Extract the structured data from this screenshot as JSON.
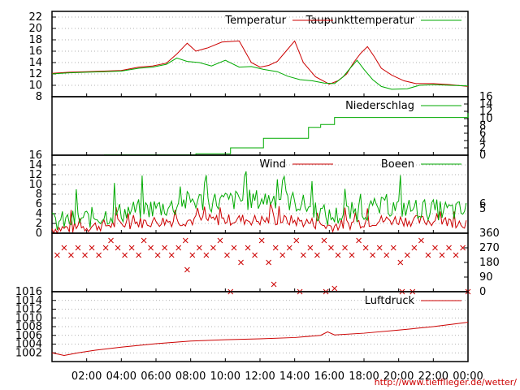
{
  "credit_url": "http://www.tiefflieger.de/wetter/",
  "time_axis": {
    "range_hours": [
      0,
      24
    ],
    "tick_hours": [
      2,
      4,
      6,
      8,
      10,
      12,
      14,
      16,
      18,
      20,
      22,
      24
    ],
    "tick_labels": [
      "02:00",
      "04:00",
      "06:00",
      "08:00",
      "10:00",
      "12:00",
      "14:00",
      "16:00",
      "18:00",
      "20:00",
      "22:00",
      "00:00"
    ]
  },
  "colors": {
    "red": "#cc0000",
    "green": "#00aa00",
    "grid": "#999999"
  },
  "chart_data": [
    {
      "type": "line",
      "ylim": [
        8,
        23
      ],
      "yticks": [
        8,
        10,
        12,
        14,
        16,
        18,
        20,
        22
      ],
      "ytick_labels": [
        "8",
        "10",
        "12",
        "14",
        "16",
        "18",
        "20",
        "22"
      ],
      "grid": true,
      "legend_position": "top-right",
      "series": [
        {
          "name": "Temperatur",
          "color": "red",
          "points": [
            [
              0,
              12.1
            ],
            [
              1,
              12.3
            ],
            [
              2,
              12.4
            ],
            [
              3,
              12.5
            ],
            [
              4,
              12.6
            ],
            [
              5,
              13.2
            ],
            [
              5.8,
              13.4
            ],
            [
              6.6,
              13.9
            ],
            [
              7.2,
              15.5
            ],
            [
              7.8,
              17.4
            ],
            [
              8.3,
              16.0
            ],
            [
              9,
              16.6
            ],
            [
              9.8,
              17.6
            ],
            [
              10.8,
              17.8
            ],
            [
              11.5,
              14.0
            ],
            [
              12,
              13.2
            ],
            [
              12.5,
              13.5
            ],
            [
              13,
              14.2
            ],
            [
              13.5,
              16.0
            ],
            [
              14,
              17.8
            ],
            [
              14.5,
              14.0
            ],
            [
              15.2,
              11.5
            ],
            [
              16,
              10.2
            ],
            [
              16.5,
              10.8
            ],
            [
              17,
              12.0
            ],
            [
              17.4,
              14.0
            ],
            [
              17.8,
              15.6
            ],
            [
              18.2,
              16.8
            ],
            [
              18.6,
              15.0
            ],
            [
              19,
              13.0
            ],
            [
              19.6,
              11.8
            ],
            [
              20.3,
              10.8
            ],
            [
              21,
              10.3
            ],
            [
              22,
              10.3
            ],
            [
              23,
              10.1
            ],
            [
              24,
              9.8
            ]
          ]
        },
        {
          "name": "Taupunkttemperatur",
          "color": "green",
          "points": [
            [
              0,
              12.0
            ],
            [
              1,
              12.2
            ],
            [
              2,
              12.3
            ],
            [
              3,
              12.4
            ],
            [
              4,
              12.5
            ],
            [
              5,
              13.0
            ],
            [
              5.8,
              13.2
            ],
            [
              6.6,
              13.7
            ],
            [
              7.2,
              14.8
            ],
            [
              7.8,
              14.2
            ],
            [
              8.5,
              14.0
            ],
            [
              9.2,
              13.4
            ],
            [
              10,
              14.4
            ],
            [
              10.8,
              13.2
            ],
            [
              11.5,
              13.3
            ],
            [
              12.2,
              12.8
            ],
            [
              13,
              12.4
            ],
            [
              13.6,
              11.6
            ],
            [
              14.3,
              11.0
            ],
            [
              15,
              10.8
            ],
            [
              15.7,
              10.4
            ],
            [
              16.3,
              10.3
            ],
            [
              16.8,
              11.5
            ],
            [
              17.2,
              13.0
            ],
            [
              17.6,
              14.4
            ],
            [
              18,
              12.8
            ],
            [
              18.5,
              11.0
            ],
            [
              19,
              9.8
            ],
            [
              19.6,
              9.3
            ],
            [
              20.5,
              9.4
            ],
            [
              21.2,
              10.0
            ],
            [
              22,
              10.1
            ],
            [
              23,
              10.0
            ],
            [
              24,
              9.9
            ]
          ]
        }
      ]
    },
    {
      "type": "line",
      "ylim": [
        0,
        16
      ],
      "yticks": [
        0,
        2,
        4,
        6,
        8,
        10,
        12,
        14,
        16
      ],
      "ytick_labels": [
        "0",
        "2",
        "4",
        "6",
        "8",
        "10",
        "12",
        "14",
        "16"
      ],
      "yaxis_side": "right",
      "legend_position": "top-right",
      "series": [
        {
          "name": "Niederschlag",
          "color": "green",
          "points": [
            [
              3,
              0.1
            ],
            [
              8.3,
              0.4
            ],
            [
              10.3,
              2.0
            ],
            [
              12.2,
              4.6
            ],
            [
              14.8,
              7.6
            ],
            [
              15.5,
              8.4
            ],
            [
              16.3,
              10.3
            ],
            [
              24,
              11.5
            ]
          ]
        }
      ]
    },
    {
      "type": "line",
      "ylim": [
        0,
        16
      ],
      "yticks": [
        0,
        2,
        4,
        6,
        8,
        10,
        12,
        14,
        16
      ],
      "ytick_labels": [
        "0",
        "2",
        "4",
        "6",
        "8",
        "10",
        "12",
        "14",
        "16"
      ],
      "right_ticks": [
        6,
        5
      ],
      "right_tick_labels": [
        "6",
        "5"
      ],
      "grid": true,
      "legend_position": "top-right",
      "series": [
        {
          "name": "Wind",
          "color": "red",
          "points": [
            [
              0,
              0.8
            ],
            [
              1,
              0.9
            ],
            [
              2,
              1.2
            ],
            [
              3,
              1.5
            ],
            [
              4,
              1.8
            ],
            [
              5,
              2.0
            ],
            [
              6,
              2.3
            ],
            [
              7,
              2.4
            ],
            [
              8,
              2.5
            ],
            [
              9,
              2.6
            ],
            [
              10,
              2.6
            ],
            [
              11,
              2.7
            ],
            [
              12,
              2.5
            ],
            [
              13,
              2.6
            ],
            [
              14,
              2.4
            ],
            [
              15,
              2.0
            ],
            [
              16,
              1.3
            ],
            [
              17,
              1.7
            ],
            [
              18,
              2.2
            ],
            [
              19,
              2.5
            ],
            [
              20,
              2.6
            ],
            [
              21,
              2.4
            ],
            [
              22,
              2.4
            ],
            [
              23,
              2.2
            ],
            [
              24,
              2.0
            ]
          ]
        },
        {
          "name": "Boeen",
          "color": "green",
          "points": [
            [
              0,
              2.0
            ],
            [
              1,
              2.3
            ],
            [
              2,
              2.8
            ],
            [
              3,
              3.4
            ],
            [
              4,
              4.0
            ],
            [
              5,
              4.6
            ],
            [
              6,
              5.0
            ],
            [
              7,
              5.2
            ],
            [
              8,
              6.5
            ],
            [
              9,
              6.2
            ],
            [
              10,
              6.4
            ],
            [
              11,
              6.6
            ],
            [
              12,
              6.6
            ],
            [
              13,
              7.0
            ],
            [
              14,
              6.2
            ],
            [
              15,
              5.0
            ],
            [
              16,
              3.0
            ],
            [
              17,
              3.8
            ],
            [
              18,
              4.5
            ],
            [
              19,
              5.0
            ],
            [
              20,
              5.0
            ],
            [
              21,
              4.8
            ],
            [
              22,
              4.6
            ],
            [
              23,
              4.4
            ],
            [
              24,
              4.2
            ]
          ]
        }
      ]
    },
    {
      "type": "scatter",
      "ylim": [
        0,
        360
      ],
      "yticks": [
        0,
        90,
        180,
        270,
        360
      ],
      "ytick_labels": [
        "0",
        "90",
        "180",
        "270",
        "360"
      ],
      "yaxis_side": "right",
      "series": [
        {
          "name": "",
          "color": "red",
          "marker": "x",
          "points": [
            [
              0.3,
              225
            ],
            [
              0.7,
              270
            ],
            [
              1.1,
              225
            ],
            [
              1.5,
              270
            ],
            [
              1.9,
              225
            ],
            [
              2.3,
              270
            ],
            [
              2.7,
              225
            ],
            [
              3.1,
              270
            ],
            [
              3.4,
              315
            ],
            [
              3.8,
              270
            ],
            [
              4.2,
              225
            ],
            [
              4.6,
              270
            ],
            [
              5.0,
              225
            ],
            [
              5.3,
              315
            ],
            [
              5.7,
              270
            ],
            [
              6.1,
              225
            ],
            [
              6.5,
              270
            ],
            [
              6.9,
              225
            ],
            [
              7.3,
              270
            ],
            [
              7.7,
              315
            ],
            [
              7.8,
              135
            ],
            [
              8.1,
              225
            ],
            [
              8.5,
              270
            ],
            [
              8.9,
              225
            ],
            [
              9.3,
              270
            ],
            [
              9.7,
              315
            ],
            [
              10.1,
              225
            ],
            [
              10.3,
              0
            ],
            [
              10.5,
              270
            ],
            [
              10.9,
              180
            ],
            [
              11.3,
              270
            ],
            [
              11.7,
              225
            ],
            [
              12.1,
              315
            ],
            [
              12.5,
              180
            ],
            [
              12.8,
              45
            ],
            [
              12.9,
              270
            ],
            [
              13.3,
              225
            ],
            [
              13.7,
              270
            ],
            [
              14.1,
              315
            ],
            [
              14.3,
              0
            ],
            [
              14.5,
              225
            ],
            [
              14.9,
              270
            ],
            [
              15.3,
              225
            ],
            [
              15.7,
              315
            ],
            [
              15.8,
              0
            ],
            [
              16.1,
              270
            ],
            [
              16.3,
              20
            ],
            [
              16.5,
              225
            ],
            [
              16.9,
              270
            ],
            [
              17.3,
              225
            ],
            [
              17.7,
              315
            ],
            [
              18.1,
              270
            ],
            [
              18.5,
              225
            ],
            [
              18.9,
              270
            ],
            [
              19.3,
              225
            ],
            [
              19.7,
              270
            ],
            [
              20.1,
              180
            ],
            [
              20.2,
              0
            ],
            [
              20.5,
              225
            ],
            [
              20.8,
              0
            ],
            [
              20.9,
              270
            ],
            [
              21.3,
              315
            ],
            [
              21.7,
              225
            ],
            [
              22.1,
              270
            ],
            [
              22.5,
              225
            ],
            [
              22.9,
              270
            ],
            [
              23.3,
              225
            ],
            [
              23.7,
              270
            ],
            [
              24,
              0
            ]
          ]
        }
      ]
    },
    {
      "type": "line",
      "ylim": [
        1000,
        1016
      ],
      "yticks": [
        1002,
        1004,
        1006,
        1008,
        1010,
        1012,
        1014,
        1016
      ],
      "ytick_labels": [
        "1002",
        "1004",
        "1006",
        "1008",
        "1010",
        "1012",
        "1014",
        "1016"
      ],
      "grid": true,
      "legend_position": "top-right",
      "series": [
        {
          "name": "Luftdruck",
          "color": "red",
          "points": [
            [
              0,
              1002.0
            ],
            [
              0.7,
              1001.4
            ],
            [
              1.5,
              1002.0
            ],
            [
              2.5,
              1002.6
            ],
            [
              4,
              1003.3
            ],
            [
              6,
              1004.1
            ],
            [
              8,
              1004.7
            ],
            [
              10,
              1005.0
            ],
            [
              12,
              1005.2
            ],
            [
              14,
              1005.5
            ],
            [
              15.5,
              1006.0
            ],
            [
              15.9,
              1006.8
            ],
            [
              16.3,
              1006.1
            ],
            [
              18,
              1006.5
            ],
            [
              20,
              1007.2
            ],
            [
              22,
              1008.0
            ],
            [
              24,
              1009.0
            ]
          ]
        }
      ]
    }
  ]
}
